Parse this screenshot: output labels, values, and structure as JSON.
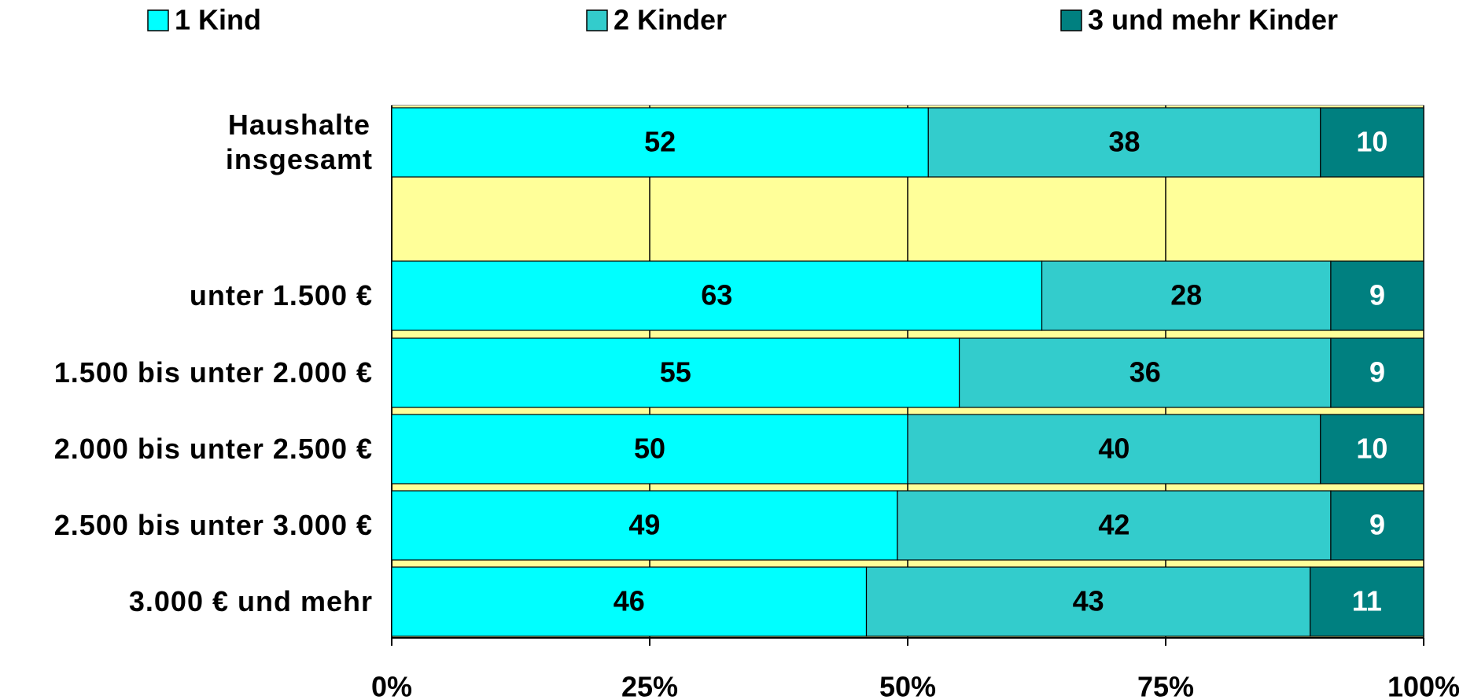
{
  "chart_data": {
    "type": "stacked-barh",
    "categories": [
      "Haushalte\ninsgesamt",
      null,
      "unter 1.500 €",
      "1.500 bis unter 2.000 €",
      "2.000 bis unter 2.500 €",
      "2.500 bis unter 3.000 €",
      "3.000 € und mehr"
    ],
    "series": [
      {
        "name": "1 Kind",
        "color": "#00ffff",
        "label_color": "#000000",
        "values": [
          52,
          null,
          63,
          55,
          50,
          49,
          46
        ]
      },
      {
        "name": "2 Kinder",
        "color": "#33cccc",
        "label_color": "#000000",
        "values": [
          38,
          null,
          28,
          36,
          40,
          42,
          43
        ]
      },
      {
        "name": "3 und mehr Kinder",
        "color": "#008080",
        "label_color": "#ffffff",
        "values": [
          10,
          null,
          9,
          9,
          10,
          9,
          11
        ]
      }
    ],
    "xlim": [
      0,
      100
    ],
    "xticks": [
      {
        "value": 0,
        "label": "0%"
      },
      {
        "value": 25,
        "label": "25%"
      },
      {
        "value": 50,
        "label": "50%"
      },
      {
        "value": 75,
        "label": "75%"
      },
      {
        "value": 100,
        "label": "100%"
      }
    ],
    "grid": true,
    "plot_background": "#ffff99",
    "legend": "top"
  }
}
